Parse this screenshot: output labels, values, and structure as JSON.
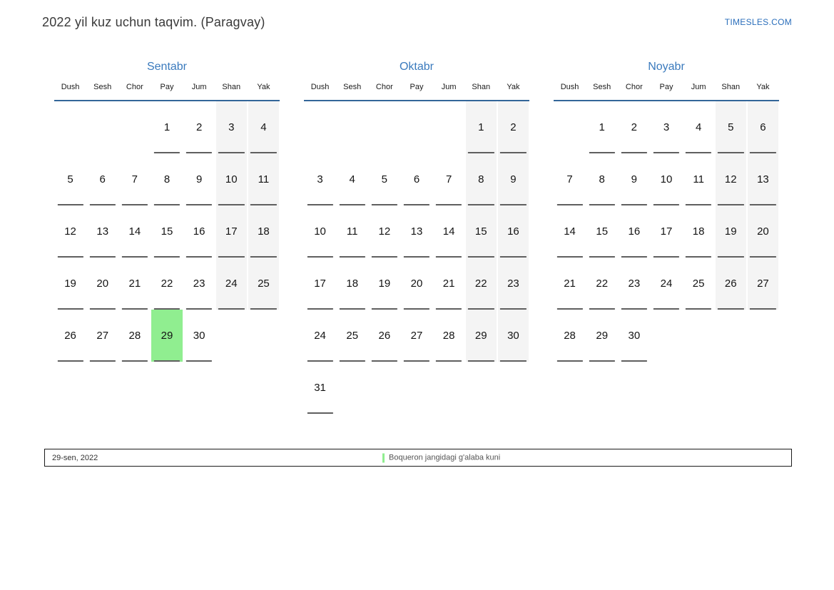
{
  "header": {
    "title": "2022 yil kuz uchun taqvim. (Paragvay)",
    "brand": "TIMESLES.COM"
  },
  "calendar": {
    "weekdays": [
      "Dush",
      "Sesh",
      "Chor",
      "Pay",
      "Jum",
      "Shan",
      "Yak"
    ],
    "months": [
      {
        "name": "Sentabr",
        "weeks": [
          [
            "",
            "",
            "",
            "1",
            "2",
            "3",
            "4"
          ],
          [
            "5",
            "6",
            "7",
            "8",
            "9",
            "10",
            "11"
          ],
          [
            "12",
            "13",
            "14",
            "15",
            "16",
            "17",
            "18"
          ],
          [
            "19",
            "20",
            "21",
            "22",
            "23",
            "24",
            "25"
          ],
          [
            "26",
            "27",
            "28",
            "29",
            "30",
            "",
            ""
          ]
        ],
        "highlighted_day": "29"
      },
      {
        "name": "Oktabr",
        "weeks": [
          [
            "",
            "",
            "",
            "",
            "",
            "1",
            "2"
          ],
          [
            "3",
            "4",
            "5",
            "6",
            "7",
            "8",
            "9"
          ],
          [
            "10",
            "11",
            "12",
            "13",
            "14",
            "15",
            "16"
          ],
          [
            "17",
            "18",
            "19",
            "20",
            "21",
            "22",
            "23"
          ],
          [
            "24",
            "25",
            "26",
            "27",
            "28",
            "29",
            "30"
          ],
          [
            "31",
            "",
            "",
            "",
            "",
            "",
            ""
          ]
        ],
        "highlighted_day": null
      },
      {
        "name": "Noyabr",
        "weeks": [
          [
            "",
            "1",
            "2",
            "3",
            "4",
            "5",
            "6"
          ],
          [
            "7",
            "8",
            "9",
            "10",
            "11",
            "12",
            "13"
          ],
          [
            "14",
            "15",
            "16",
            "17",
            "18",
            "19",
            "20"
          ],
          [
            "21",
            "22",
            "23",
            "24",
            "25",
            "26",
            "27"
          ],
          [
            "28",
            "29",
            "30",
            "",
            "",
            "",
            ""
          ]
        ],
        "highlighted_day": null
      }
    ]
  },
  "footer": {
    "date": "29-sen, 2022",
    "event": "Boqueron jangidagi g'alaba kuni"
  },
  "colors": {
    "accent_blue": "#3a7abd",
    "header_line_blue": "#336699",
    "link_blue": "#2a6ebb",
    "weekend_bg": "#f4f4f4",
    "highlight_green": "#90ee90",
    "event_marker_green": "#90ee90",
    "underline_gray": "#5f5f5f"
  }
}
